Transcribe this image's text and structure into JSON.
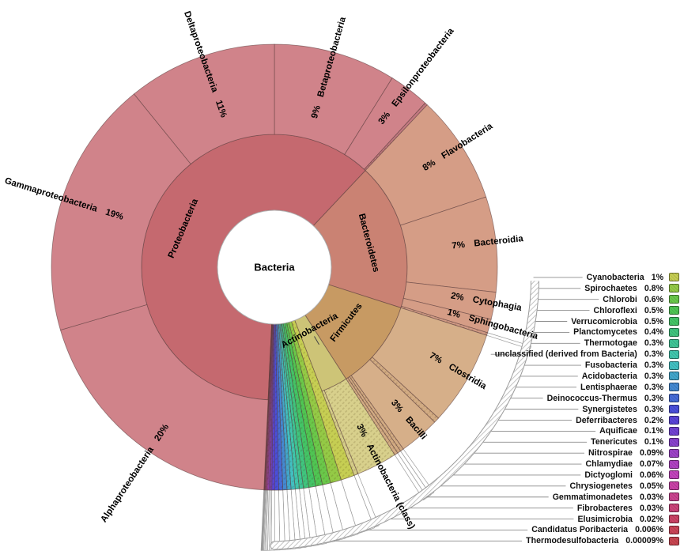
{
  "chart_data": {
    "type": "sunburst",
    "root": "Bacteria",
    "unit": "%",
    "rings": [
      "phylum",
      "class"
    ],
    "phyla_styles": {
      "Proteobacteria": {
        "inner": "#c5696f",
        "outer": "#d0838a",
        "sliver": "#c27880"
      },
      "Bacteroidetes": {
        "inner": "#ca8273",
        "outer": "#d59d86",
        "sliver": "#d09a85"
      },
      "Firmicutes": {
        "inner": "#c79a63",
        "outer": "#d6af89",
        "sliver": "#d2ab83"
      },
      "Actinobacteria": {
        "inner": "#cdc477",
        "outer": "#d8d08c",
        "sliver": "#d5cd89"
      }
    },
    "arcs": [
      {
        "phylum": "Proteobacteria",
        "name": "Betaproteobacteria",
        "value": 9,
        "label": "9%"
      },
      {
        "phylum": "Proteobacteria",
        "name": "Epsilonproteobacteria",
        "value": 3,
        "label": "3%"
      },
      {
        "phylum": "Proteobacteria",
        "sliver": true,
        "value": 0.2
      },
      {
        "phylum": "Bacteroidetes",
        "name": "Flavobacteria",
        "value": 8,
        "label": "8%"
      },
      {
        "phylum": "Bacteroidetes",
        "name": "Bacteroidia",
        "value": 7,
        "label": "7%"
      },
      {
        "phylum": "Bacteroidetes",
        "name": "Cytophagia",
        "value": 2,
        "label": "2%"
      },
      {
        "phylum": "Bacteroidetes",
        "name": "Sphingobacteria",
        "value": 1,
        "label": "1%"
      },
      {
        "phylum": "Bacteroidetes",
        "sliver": true,
        "value": 0.2,
        "leader": true
      },
      {
        "phylum": "Firmicutes",
        "name": "Clostridia",
        "value": 7,
        "label": "7%"
      },
      {
        "phylum": "Firmicutes",
        "sliver": true,
        "value": 0.4
      },
      {
        "phylum": "Firmicutes",
        "name": "Bacilli",
        "value": 3,
        "label": "3%"
      },
      {
        "phylum": "Firmicutes",
        "sliver": true,
        "value": 0.25,
        "leader": true
      },
      {
        "phylum": "Firmicutes",
        "sliver": true,
        "value": 0.25,
        "leader": true
      },
      {
        "phylum": "Firmicutes",
        "sliver": true,
        "value": 0.25,
        "leader": true
      },
      {
        "phylum": "Actinobacteria",
        "name": "Actinobacteria (class)",
        "value": 3,
        "label": "3%",
        "hatch": true
      },
      {
        "phylum": "Actinobacteria",
        "sliver": true,
        "value": 0.3,
        "leader": true
      },
      {
        "group": "small_phyla"
      },
      {
        "phylum": "Proteobacteria",
        "name": "Alphaproteobacteria",
        "value": 20,
        "label": "20%"
      },
      {
        "phylum": "Proteobacteria",
        "name": "Gammaproteobacteria",
        "value": 19,
        "label": "19%"
      },
      {
        "phylum": "Proteobacteria",
        "name": "Deltaproteobacteria",
        "value": 11,
        "label": "11%"
      }
    ],
    "small_phyla": [
      {
        "name": "Cyanobacteria",
        "value": 1,
        "label": "1%",
        "color": "#c6ce53"
      },
      {
        "name": "Spirochaetes",
        "value": 0.8,
        "label": "0.8%",
        "color": "#94ca46"
      },
      {
        "name": "Chlorobi",
        "value": 0.6,
        "label": "0.6%",
        "color": "#6ac84a"
      },
      {
        "name": "Chloroflexi",
        "value": 0.5,
        "label": "0.5%",
        "color": "#4fc553"
      },
      {
        "name": "Verrucomicrobia",
        "value": 0.5,
        "label": "0.5%",
        "color": "#43c466"
      },
      {
        "name": "Planctomycetes",
        "value": 0.4,
        "label": "0.4%",
        "color": "#3fc47e"
      },
      {
        "name": "Thermotogae",
        "value": 0.3,
        "label": "0.3%",
        "color": "#3ec596"
      },
      {
        "name": "unclassified (derived from Bacteria)",
        "value": 0.3,
        "label": "0.3%",
        "color": "#3fc6ad"
      },
      {
        "name": "Fusobacteria",
        "value": 0.3,
        "label": "0.3%",
        "color": "#41c0c2"
      },
      {
        "name": "Acidobacteria",
        "value": 0.3,
        "label": "0.3%",
        "color": "#42a6cb"
      },
      {
        "name": "Lentisphaerae",
        "value": 0.3,
        "label": "0.3%",
        "color": "#4389d2"
      },
      {
        "name": "Deinococcus-Thermus",
        "value": 0.3,
        "label": "0.3%",
        "color": "#456cd7"
      },
      {
        "name": "Synergistetes",
        "value": 0.3,
        "label": "0.3%",
        "color": "#4a4fdb"
      },
      {
        "name": "Deferribacteres",
        "value": 0.2,
        "label": "0.2%",
        "color": "#5a44d8"
      },
      {
        "name": "Aquificae",
        "value": 0.1,
        "label": "0.1%",
        "color": "#7142d2"
      },
      {
        "name": "Tenericutes",
        "value": 0.1,
        "label": "0.1%",
        "color": "#8841cc"
      },
      {
        "name": "Nitrospirae",
        "value": 0.09,
        "label": "0.09%",
        "color": "#9c41c7"
      },
      {
        "name": "Chlamydiae",
        "value": 0.07,
        "label": "0.07%",
        "color": "#b041c2"
      },
      {
        "name": "Dictyoglomi",
        "value": 0.06,
        "label": "0.06%",
        "color": "#c242bc"
      },
      {
        "name": "Chrysiogenetes",
        "value": 0.05,
        "label": "0.05%",
        "color": "#c942a7"
      },
      {
        "name": "Gemmatimonadetes",
        "value": 0.03,
        "label": "0.03%",
        "color": "#ca438f"
      },
      {
        "name": "Fibrobacteres",
        "value": 0.03,
        "label": "0.03%",
        "color": "#cb4379"
      },
      {
        "name": "Elusimicrobia",
        "value": 0.02,
        "label": "0.02%",
        "color": "#cb4365"
      },
      {
        "name": "Candidatus Poribacteria",
        "value": 0.006,
        "label": "0.006%",
        "color": "#ca4457"
      },
      {
        "name": "Thermodesulfobacteria",
        "value": 9e-05,
        "label": "0.00009%",
        "color": "#c84550"
      }
    ]
  }
}
